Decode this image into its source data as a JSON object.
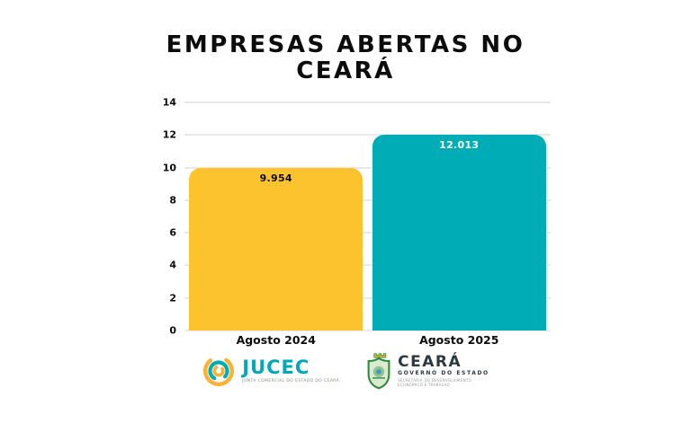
{
  "title": {
    "line1": "EMPRESAS ABERTAS NO",
    "line2": "CEARÁ"
  },
  "chart_data": {
    "type": "bar",
    "title": "EMPRESAS ABERTAS NO CEARÁ",
    "categories": [
      "Agosto 2024",
      "Agosto 2025"
    ],
    "values": [
      9.954,
      12.013
    ],
    "value_labels": [
      "9.954",
      "12.013"
    ],
    "bar_colors": [
      "#FDC32F",
      "#00ACB5"
    ],
    "value_label_colors": [
      "#0c0c0c",
      "#ffffff"
    ],
    "xlabel": "",
    "ylabel": "",
    "ylim": [
      0,
      14
    ],
    "yticks": [
      0,
      2,
      4,
      6,
      8,
      10,
      12,
      14
    ],
    "grid": true,
    "legend": "none"
  },
  "colors": {
    "background": "#ffffff",
    "bar_yellow": "#FDC32F",
    "bar_teal": "#00ACB5",
    "gridline": "#e9e9e9",
    "title_text": "#0c0c0c",
    "jucec_teal": "#00a9b8",
    "jucec_yellow": "#f9b233",
    "governo_green": "#2e8b3c",
    "governo_dark": "#2b3a40"
  },
  "footer": {
    "jucec": {
      "wordmark": "JUCEC",
      "tagline": "JUNTA COMERCIAL DO ESTADO DO CEARÁ"
    },
    "governo": {
      "wordmark": "CEARÁ",
      "subtitle": "GOVERNO DO ESTADO",
      "department_line1": "SECRETARIA DO DESENVOLVIMENTO",
      "department_line2": "ECONÔMICO E TRABALHO"
    }
  }
}
